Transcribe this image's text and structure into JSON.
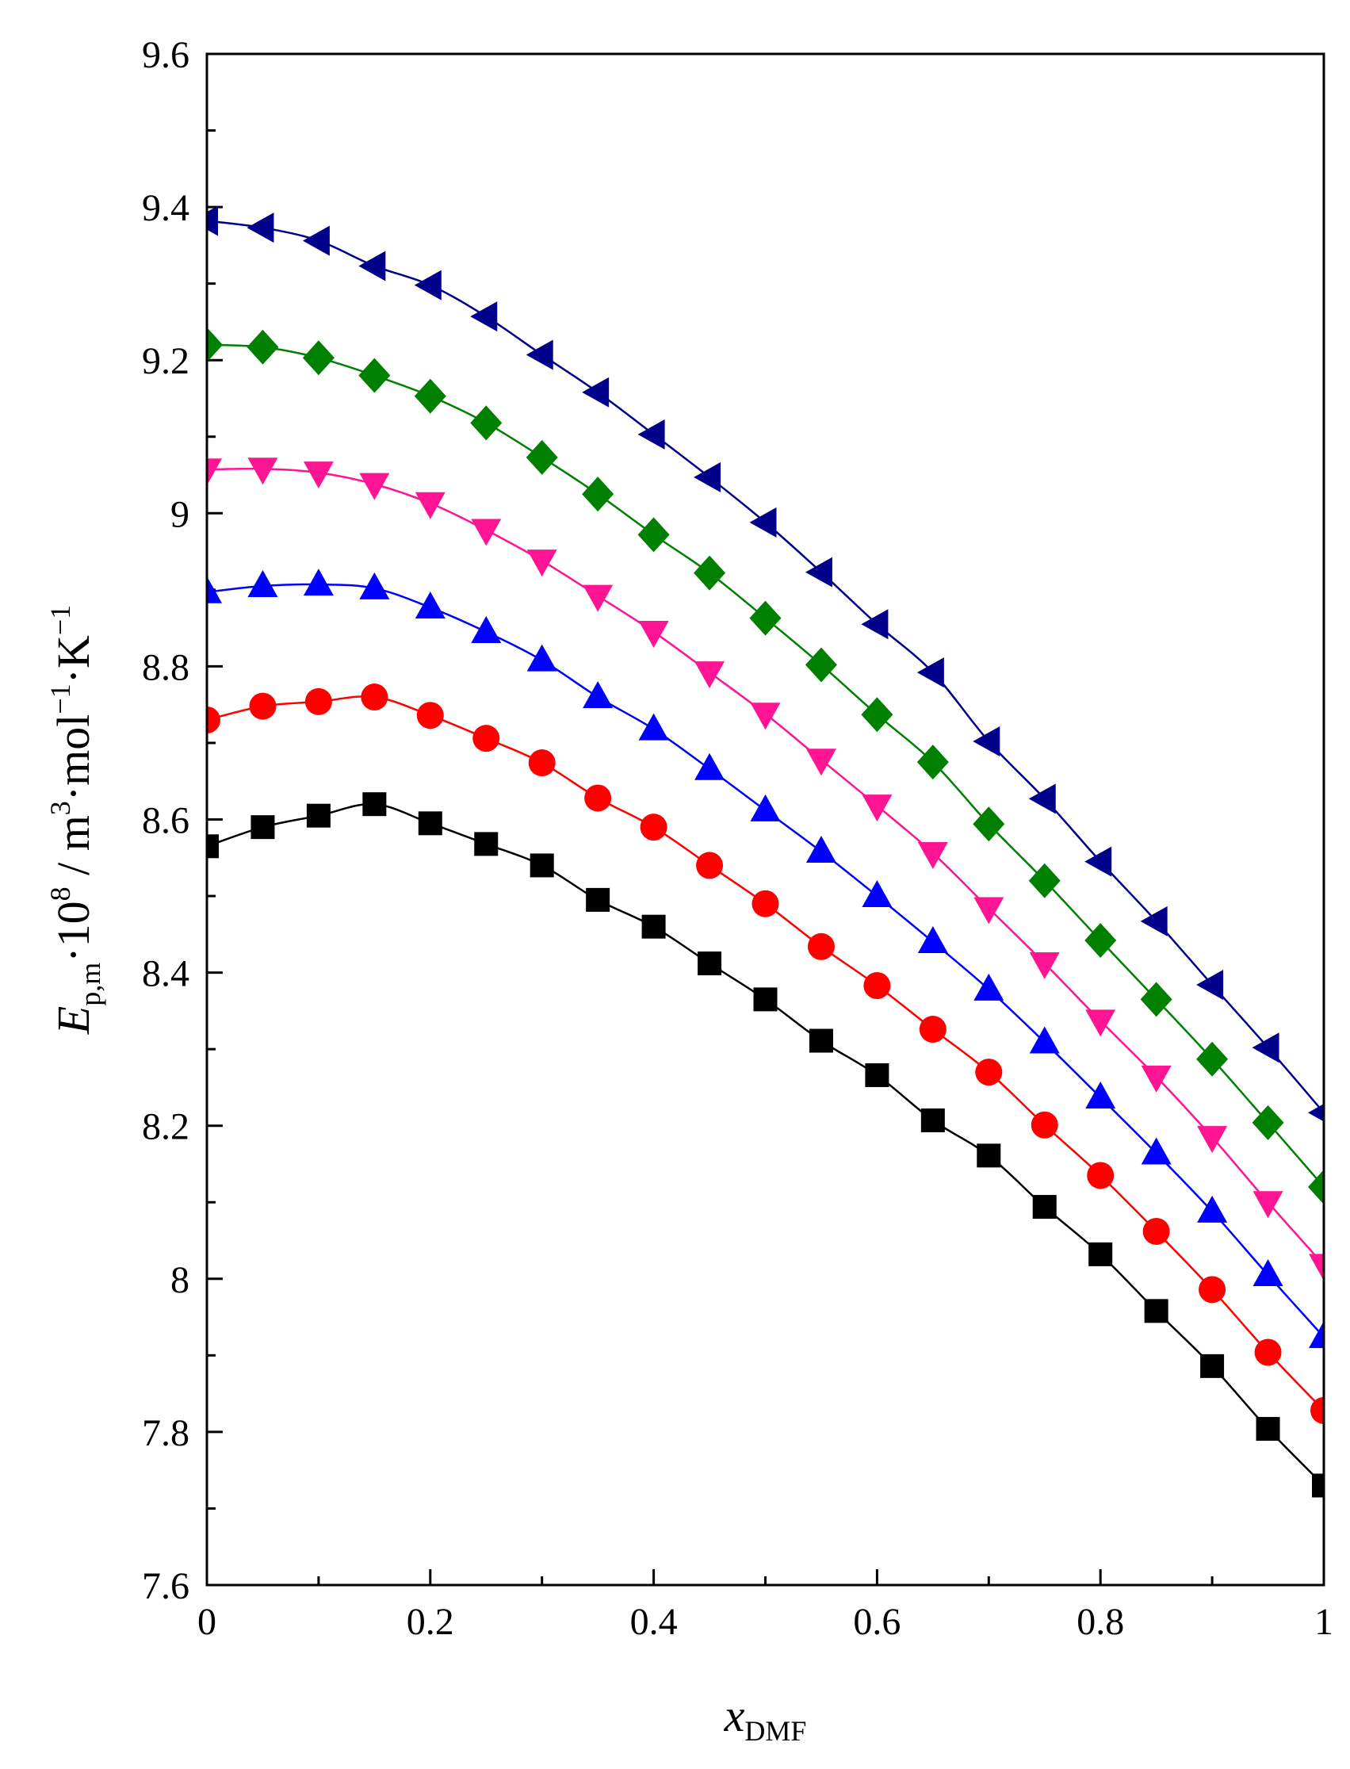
{
  "chart_data": {
    "type": "line",
    "title": "",
    "xlabel": {
      "main": "x",
      "sub": "DMF"
    },
    "ylabel": {
      "parts": [
        {
          "t": "E",
          "style": "italic"
        },
        {
          "t": "p,m",
          "style": "sub"
        },
        {
          "t": "·10",
          "style": "normal"
        },
        {
          "t": "8",
          "style": "sup"
        },
        {
          "t": " / m",
          "style": "normal"
        },
        {
          "t": "3",
          "style": "sup"
        },
        {
          "t": "·mol",
          "style": "normal"
        },
        {
          "t": "−1",
          "style": "sup"
        },
        {
          "t": "·K",
          "style": "normal"
        },
        {
          "t": "−1",
          "style": "sup"
        }
      ]
    },
    "xlim": [
      0,
      1
    ],
    "ylim": [
      7.6,
      9.6
    ],
    "xticks": [
      0,
      0.2,
      0.4,
      0.6,
      0.8,
      1
    ],
    "xtick_labels": [
      "0",
      "0.2",
      "0.4",
      "0.6",
      "0.8",
      "1"
    ],
    "yticks": [
      7.6,
      7.8,
      8.0,
      8.2,
      8.4,
      8.6,
      8.8,
      9.0,
      9.2,
      9.4,
      9.6
    ],
    "ytick_labels": [
      "7.6",
      "7.8",
      "8",
      "8.2",
      "8.4",
      "8.6",
      "8.8",
      "9",
      "9.2",
      "9.4",
      "9.6"
    ],
    "grid": false,
    "legend": "none",
    "x": [
      0,
      0.05,
      0.1,
      0.15,
      0.2,
      0.25,
      0.3,
      0.35,
      0.4,
      0.45,
      0.5,
      0.55,
      0.6,
      0.65,
      0.7,
      0.75,
      0.8,
      0.85,
      0.9,
      0.95,
      1.0
    ],
    "series": [
      {
        "marker": "square",
        "color": "#000000",
        "values": [
          8.565,
          8.59,
          8.605,
          8.62,
          8.595,
          8.568,
          8.54,
          8.495,
          8.46,
          8.412,
          8.365,
          8.311,
          8.266,
          8.207,
          8.161,
          8.094,
          8.032,
          7.958,
          7.886,
          7.804,
          7.73
        ]
      },
      {
        "marker": "circle",
        "color": "#ff0000",
        "values": [
          8.73,
          8.748,
          8.754,
          8.76,
          8.736,
          8.706,
          8.674,
          8.628,
          8.59,
          8.54,
          8.49,
          8.434,
          8.383,
          8.326,
          8.27,
          8.201,
          8.135,
          8.062,
          7.986,
          7.904,
          7.828
        ]
      },
      {
        "marker": "triangle-up",
        "color": "#0000ff",
        "values": [
          8.897,
          8.905,
          8.907,
          8.902,
          8.877,
          8.845,
          8.808,
          8.76,
          8.718,
          8.666,
          8.612,
          8.558,
          8.5,
          8.44,
          8.378,
          8.309,
          8.237,
          8.164,
          8.088,
          8.005,
          7.924
        ]
      },
      {
        "marker": "triangle-down",
        "color": "#ff1493",
        "values": [
          9.057,
          9.058,
          9.053,
          9.038,
          9.013,
          8.978,
          8.938,
          8.892,
          8.845,
          8.792,
          8.738,
          8.678,
          8.618,
          8.556,
          8.484,
          8.412,
          8.337,
          8.264,
          8.185,
          8.1,
          8.018
        ]
      },
      {
        "marker": "diamond",
        "color": "#008000",
        "values": [
          9.22,
          9.217,
          9.203,
          9.18,
          9.153,
          9.118,
          9.073,
          9.025,
          8.972,
          8.922,
          8.863,
          8.802,
          8.737,
          8.675,
          8.594,
          8.52,
          8.442,
          8.365,
          8.287,
          8.204,
          8.12
        ]
      },
      {
        "marker": "triangle-left",
        "color": "#00008b",
        "values": [
          9.382,
          9.373,
          9.356,
          9.323,
          9.298,
          9.257,
          9.207,
          9.158,
          9.103,
          9.047,
          8.988,
          8.923,
          8.855,
          8.792,
          8.702,
          8.627,
          8.545,
          8.467,
          8.384,
          8.302,
          8.217
        ]
      }
    ]
  }
}
